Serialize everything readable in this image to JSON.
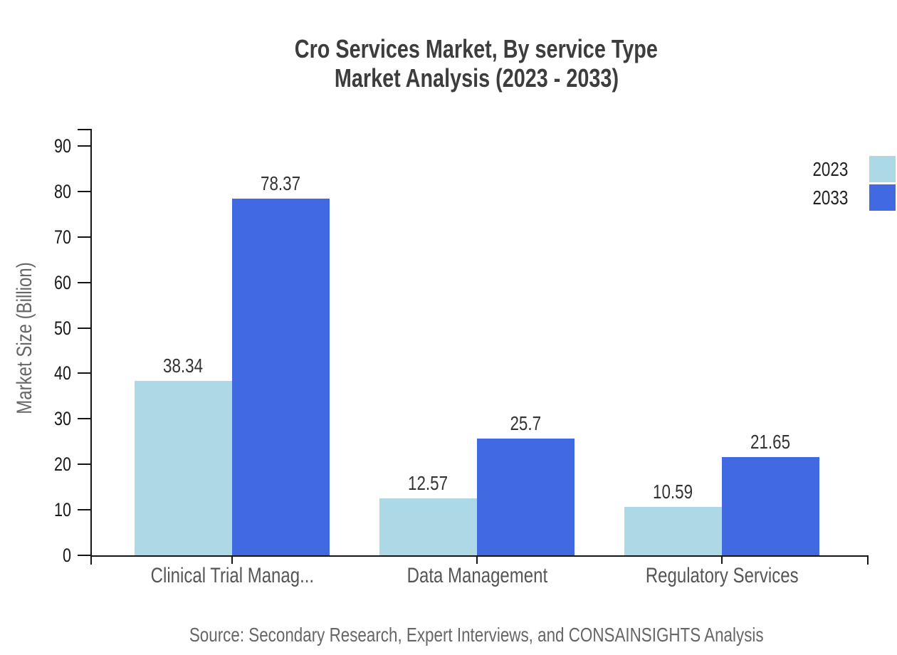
{
  "title": {
    "line1": "Cro Services Market, By service Type",
    "line2": "Market Analysis (2023 - 2033)"
  },
  "chart_data": {
    "type": "bar",
    "categories": [
      "Clinical Trial Manag...",
      "Data Management",
      "Regulatory Services"
    ],
    "series": [
      {
        "name": "2023",
        "color": "#ADD8E6",
        "values": [
          38.34,
          12.57,
          10.59
        ]
      },
      {
        "name": "2033",
        "color": "#4169E1",
        "values": [
          78.37,
          25.7,
          21.65
        ]
      }
    ],
    "title": "Cro Services Market, By service Type Market Analysis (2023 - 2033)",
    "xlabel": "",
    "ylabel": "Market Size (Billion)",
    "ylim": [
      0,
      90
    ],
    "ytick_step": 10,
    "grid": false,
    "value_labels": true,
    "legend_position": "top-right",
    "axis_color": "#151515"
  },
  "source": "Source: Secondary Research, Expert Interviews, and CONSAINSIGHTS Analysis"
}
